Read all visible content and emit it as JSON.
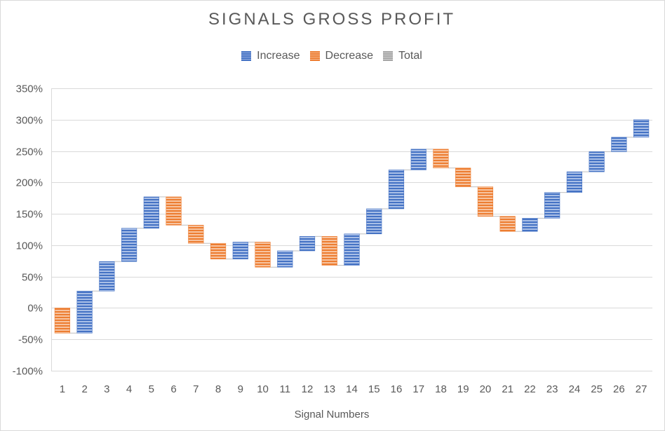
{
  "chart_data": {
    "type": "waterfall",
    "title": "SIGNALS GROSS PROFIT",
    "xlabel": "Signal Numbers",
    "ylabel": "",
    "ylim": [
      -100,
      350
    ],
    "ytick_step": 50,
    "ytick_suffix": "%",
    "grid": true,
    "legend_position": "top-center",
    "legend": [
      {
        "name": "Increase",
        "color": "#4472c4"
      },
      {
        "name": "Decrease",
        "color": "#ed7d31"
      },
      {
        "name": "Total",
        "color": "#a5a5a5"
      }
    ],
    "categories": [
      "1",
      "2",
      "3",
      "4",
      "5",
      "6",
      "7",
      "8",
      "9",
      "10",
      "11",
      "12",
      "13",
      "14",
      "15",
      "16",
      "17",
      "18",
      "19",
      "20",
      "21",
      "22",
      "23",
      "24",
      "25",
      "26",
      "27"
    ],
    "changes": [
      -40,
      67,
      47,
      53,
      50,
      -45,
      -29,
      -25,
      27,
      -40,
      26,
      23,
      -46,
      50,
      40,
      62,
      33,
      -30,
      -30,
      -47,
      -24,
      21,
      41,
      33,
      32,
      23,
      28
    ],
    "cumulative_end": [
      -40,
      27,
      74,
      127,
      177,
      132,
      103,
      78,
      105,
      65,
      91,
      114,
      68,
      118,
      158,
      220,
      253,
      223,
      193,
      146,
      122,
      143,
      184,
      217,
      249,
      272,
      300
    ]
  }
}
